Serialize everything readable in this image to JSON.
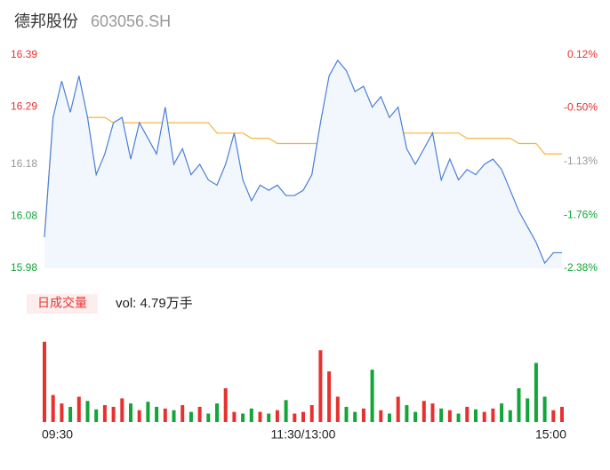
{
  "header": {
    "name": "德邦股份",
    "code": "603056.SH"
  },
  "chart_data": [
    {
      "type": "line",
      "categories": [
        "09:30",
        null,
        null,
        null,
        null,
        null,
        null,
        null,
        null,
        null,
        null,
        null,
        null,
        null,
        null,
        null,
        null,
        null,
        null,
        null,
        null,
        null,
        null,
        null,
        null,
        null,
        null,
        null,
        null,
        null,
        "11:30/13:00",
        null,
        null,
        null,
        null,
        null,
        null,
        null,
        null,
        null,
        null,
        null,
        null,
        null,
        null,
        null,
        null,
        null,
        null,
        null,
        null,
        null,
        null,
        null,
        null,
        null,
        null,
        null,
        null,
        null,
        "15:00"
      ],
      "series": [
        {
          "color": "#4a7fd8",
          "fill": "#f2f6fd",
          "values": [
            16.04,
            16.27,
            16.34,
            16.28,
            16.35,
            16.27,
            16.16,
            16.2,
            16.26,
            16.27,
            16.19,
            16.26,
            16.23,
            16.2,
            16.29,
            16.18,
            16.21,
            16.16,
            16.18,
            16.15,
            16.14,
            16.18,
            16.24,
            16.15,
            16.11,
            16.14,
            16.13,
            16.14,
            16.12,
            16.12,
            16.13,
            16.16,
            16.26,
            16.35,
            16.38,
            16.36,
            16.32,
            16.33,
            16.29,
            16.31,
            16.27,
            16.29,
            16.21,
            16.18,
            16.21,
            16.24,
            16.15,
            16.19,
            16.15,
            16.17,
            16.16,
            16.18,
            16.19,
            16.17,
            16.13,
            16.09,
            16.06,
            16.03,
            15.99,
            16.01,
            16.01
          ]
        },
        {
          "color": "#f5b53f",
          "values": [
            16.04,
            16.27,
            16.27,
            16.27,
            16.27,
            16.27,
            16.27,
            16.27,
            16.26,
            16.26,
            16.26,
            16.26,
            16.26,
            16.26,
            16.26,
            16.26,
            16.26,
            16.26,
            16.26,
            16.26,
            16.24,
            16.24,
            16.24,
            16.24,
            16.23,
            16.23,
            16.23,
            16.22,
            16.22,
            16.22,
            16.22,
            16.22,
            16.22,
            16.22,
            16.23,
            16.23,
            16.23,
            16.23,
            16.23,
            16.24,
            16.24,
            16.24,
            16.24,
            16.24,
            16.24,
            16.24,
            16.24,
            16.24,
            16.24,
            16.23,
            16.23,
            16.23,
            16.23,
            16.23,
            16.23,
            16.22,
            16.22,
            16.22,
            16.2,
            16.2,
            16.2
          ]
        }
      ],
      "ylim": [
        15.98,
        16.39
      ],
      "yticks": [
        15.98,
        16.08,
        16.18,
        16.29,
        16.39
      ],
      "y2lim": [
        -2.38,
        0.12
      ],
      "y2ticks": [
        {
          "value": -2.38,
          "label": "-2.38%"
        },
        {
          "value": -1.76,
          "label": "-1.76%"
        },
        {
          "value": -1.13,
          "label": "-1.13%"
        },
        {
          "value": -0.5,
          "label": "-0.50%"
        },
        {
          "value": 0.12,
          "label": "0.12%"
        }
      ],
      "up_color": "#e8312f",
      "down_color": "#13a538",
      "flat_color": "#999999"
    },
    {
      "type": "bar",
      "title": "日成交量",
      "annotation": "vol: 4.79万手",
      "values": [
        95,
        32,
        22,
        18,
        30,
        25,
        15,
        20,
        18,
        28,
        22,
        14,
        24,
        18,
        16,
        14,
        20,
        12,
        18,
        10,
        22,
        40,
        12,
        10,
        16,
        12,
        10,
        14,
        26,
        10,
        12,
        20,
        85,
        60,
        30,
        18,
        12,
        16,
        62,
        14,
        10,
        30,
        20,
        12,
        25,
        22,
        16,
        14,
        10,
        18,
        15,
        12,
        16,
        22,
        14,
        40,
        28,
        70,
        30,
        14,
        18
      ],
      "ylim": [
        0,
        100
      ],
      "up_color": "#e8312f",
      "down_color": "#13a538"
    }
  ]
}
